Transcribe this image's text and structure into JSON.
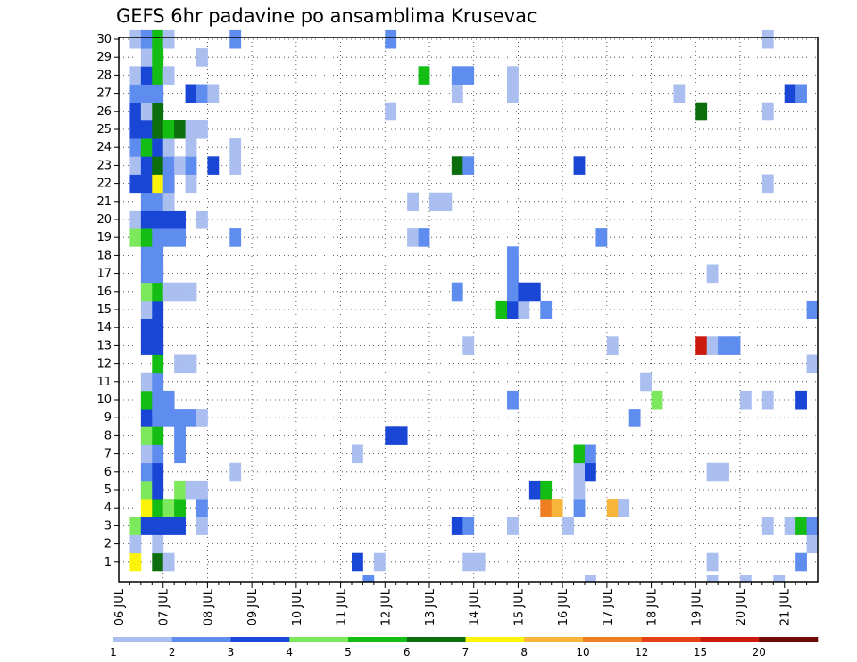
{
  "title": "GEFS 6hr padavine po ansamblima Krusevac",
  "chart_data": {
    "type": "heatmap",
    "title": "GEFS 6hr padavine po ansamblima Krusevac",
    "x_tick_labels": [
      "06 JUL",
      "07 JUL",
      "08 JUL",
      "09 JUL",
      "10 JUL",
      "11 JUL",
      "12 JUL",
      "13 JUL",
      "14 JUL",
      "15 JUL",
      "16 JUL",
      "17 JUL",
      "18 JUL",
      "19 JUL",
      "20 JUL",
      "21 JUL"
    ],
    "y_tick_labels": [
      "1",
      "2",
      "3",
      "4",
      "5",
      "6",
      "7",
      "8",
      "9",
      "10",
      "11",
      "12",
      "13",
      "14",
      "15",
      "16",
      "17",
      "18",
      "19",
      "20",
      "21",
      "22",
      "23",
      "24",
      "25",
      "26",
      "27",
      "28",
      "29",
      "30"
    ],
    "x_unit": "6-hour steps from 06 JUL 00Z",
    "y_unit": "ensemble member",
    "grid": true,
    "colorbar": {
      "placement": "bottom",
      "tick_labels": [
        "1",
        "2",
        "3",
        "4",
        "5",
        "6",
        "7",
        "8",
        "10",
        "12",
        "15",
        "20"
      ],
      "colors": [
        "#aabff0",
        "#5f8cef",
        "#1a46d6",
        "#7ce85c",
        "#13bd13",
        "#0c6e0c",
        "#fbf40a",
        "#f7b63a",
        "#ef7f22",
        "#e44116",
        "#cb1a0d",
        "#700a08"
      ]
    },
    "cells": [
      [
        1,
        1,
        7
      ],
      [
        1,
        2,
        1
      ],
      [
        1,
        3,
        4
      ],
      [
        1,
        19,
        4
      ],
      [
        1,
        20,
        1
      ],
      [
        1,
        22,
        3
      ],
      [
        1,
        23,
        1
      ],
      [
        1,
        24,
        2
      ],
      [
        1,
        25,
        3
      ],
      [
        1,
        26,
        3
      ],
      [
        1,
        27,
        2
      ],
      [
        1,
        28,
        1
      ],
      [
        1,
        30,
        1
      ],
      [
        2,
        3,
        3
      ],
      [
        2,
        4,
        7
      ],
      [
        2,
        5,
        4
      ],
      [
        2,
        6,
        2
      ],
      [
        2,
        7,
        1
      ],
      [
        2,
        8,
        4
      ],
      [
        2,
        9,
        3
      ],
      [
        2,
        10,
        5
      ],
      [
        2,
        11,
        1
      ],
      [
        2,
        13,
        3
      ],
      [
        2,
        14,
        3
      ],
      [
        2,
        15,
        1
      ],
      [
        2,
        16,
        4
      ],
      [
        2,
        17,
        2
      ],
      [
        2,
        18,
        2
      ],
      [
        2,
        19,
        5
      ],
      [
        2,
        20,
        3
      ],
      [
        2,
        21,
        2
      ],
      [
        2,
        22,
        3
      ],
      [
        2,
        23,
        3
      ],
      [
        2,
        24,
        5
      ],
      [
        2,
        25,
        3
      ],
      [
        2,
        26,
        1
      ],
      [
        2,
        27,
        2
      ],
      [
        2,
        28,
        3
      ],
      [
        2,
        29,
        1
      ],
      [
        2,
        30,
        2
      ],
      [
        3,
        1,
        6
      ],
      [
        3,
        2,
        1
      ],
      [
        3,
        3,
        3
      ],
      [
        3,
        4,
        5
      ],
      [
        3,
        5,
        3
      ],
      [
        3,
        6,
        3
      ],
      [
        3,
        7,
        2
      ],
      [
        3,
        8,
        5
      ],
      [
        3,
        9,
        2
      ],
      [
        3,
        10,
        2
      ],
      [
        3,
        11,
        2
      ],
      [
        3,
        12,
        5
      ],
      [
        3,
        13,
        3
      ],
      [
        3,
        14,
        3
      ],
      [
        3,
        15,
        3
      ],
      [
        3,
        16,
        5
      ],
      [
        3,
        17,
        2
      ],
      [
        3,
        18,
        2
      ],
      [
        3,
        19,
        2
      ],
      [
        3,
        20,
        3
      ],
      [
        3,
        21,
        2
      ],
      [
        3,
        22,
        7
      ],
      [
        3,
        23,
        6
      ],
      [
        3,
        24,
        3
      ],
      [
        3,
        25,
        6
      ],
      [
        3,
        26,
        6
      ],
      [
        3,
        27,
        2
      ],
      [
        3,
        28,
        5
      ],
      [
        3,
        29,
        5
      ],
      [
        3,
        30,
        5
      ],
      [
        4,
        1,
        1
      ],
      [
        4,
        3,
        3
      ],
      [
        4,
        4,
        4
      ],
      [
        4,
        9,
        2
      ],
      [
        4,
        10,
        2
      ],
      [
        4,
        16,
        1
      ],
      [
        4,
        19,
        2
      ],
      [
        4,
        20,
        3
      ],
      [
        4,
        21,
        1
      ],
      [
        4,
        22,
        2
      ],
      [
        4,
        23,
        2
      ],
      [
        4,
        24,
        1
      ],
      [
        4,
        25,
        5
      ],
      [
        4,
        28,
        1
      ],
      [
        4,
        30,
        1
      ],
      [
        5,
        3,
        3
      ],
      [
        5,
        4,
        5
      ],
      [
        5,
        5,
        4
      ],
      [
        5,
        7,
        2
      ],
      [
        5,
        8,
        2
      ],
      [
        5,
        9,
        2
      ],
      [
        5,
        12,
        1
      ],
      [
        5,
        16,
        1
      ],
      [
        5,
        19,
        2
      ],
      [
        5,
        20,
        3
      ],
      [
        5,
        23,
        1
      ],
      [
        5,
        25,
        6
      ],
      [
        6,
        5,
        1
      ],
      [
        6,
        9,
        2
      ],
      [
        6,
        12,
        1
      ],
      [
        6,
        16,
        1
      ],
      [
        6,
        22,
        1
      ],
      [
        6,
        23,
        2
      ],
      [
        6,
        24,
        1
      ],
      [
        6,
        25,
        1
      ],
      [
        6,
        27,
        3
      ],
      [
        7,
        3,
        1
      ],
      [
        7,
        4,
        2
      ],
      [
        7,
        5,
        1
      ],
      [
        7,
        9,
        1
      ],
      [
        7,
        20,
        1
      ],
      [
        7,
        25,
        1
      ],
      [
        7,
        27,
        2
      ],
      [
        7,
        29,
        1
      ],
      [
        8,
        27,
        1
      ],
      [
        8,
        23,
        3
      ],
      [
        10,
        6,
        1
      ],
      [
        10,
        19,
        2
      ],
      [
        10,
        23,
        1
      ],
      [
        10,
        24,
        1
      ],
      [
        10,
        30,
        2
      ],
      [
        21,
        1,
        3
      ],
      [
        21,
        7,
        1
      ],
      [
        22,
        0,
        2
      ],
      [
        23,
        1,
        1
      ],
      [
        24,
        8,
        3
      ],
      [
        24,
        26,
        1
      ],
      [
        24,
        30,
        2
      ],
      [
        25,
        8,
        3
      ],
      [
        26,
        19,
        1
      ],
      [
        26,
        21,
        1
      ],
      [
        27,
        19,
        2
      ],
      [
        27,
        28,
        5
      ],
      [
        28,
        21,
        1
      ],
      [
        29,
        21,
        1
      ],
      [
        30,
        3,
        3
      ],
      [
        30,
        16,
        2
      ],
      [
        30,
        23,
        6
      ],
      [
        30,
        27,
        1
      ],
      [
        30,
        28,
        2
      ],
      [
        31,
        1,
        1
      ],
      [
        31,
        3,
        2
      ],
      [
        31,
        13,
        1
      ],
      [
        31,
        23,
        2
      ],
      [
        31,
        28,
        2
      ],
      [
        32,
        1,
        1
      ],
      [
        34,
        15,
        5
      ],
      [
        35,
        3,
        1
      ],
      [
        35,
        10,
        2
      ],
      [
        35,
        15,
        3
      ],
      [
        35,
        16,
        2
      ],
      [
        35,
        17,
        2
      ],
      [
        35,
        18,
        2
      ],
      [
        35,
        27,
        1
      ],
      [
        35,
        28,
        1
      ],
      [
        36,
        15,
        1
      ],
      [
        36,
        16,
        3
      ],
      [
        37,
        5,
        3
      ],
      [
        37,
        16,
        3
      ],
      [
        38,
        4,
        9
      ],
      [
        38,
        5,
        5
      ],
      [
        38,
        15,
        2
      ],
      [
        39,
        4,
        8
      ],
      [
        40,
        3,
        1
      ],
      [
        41,
        4,
        2
      ],
      [
        41,
        5,
        1
      ],
      [
        41,
        6,
        1
      ],
      [
        41,
        7,
        5
      ],
      [
        41,
        23,
        3
      ],
      [
        42,
        6,
        3
      ],
      [
        42,
        7,
        2
      ],
      [
        42,
        0,
        1
      ],
      [
        43,
        19,
        2
      ],
      [
        44,
        4,
        8
      ],
      [
        44,
        13,
        1
      ],
      [
        45,
        4,
        1
      ],
      [
        46,
        9,
        2
      ],
      [
        47,
        11,
        1
      ],
      [
        48,
        10,
        4
      ],
      [
        50,
        27,
        1
      ],
      [
        52,
        13,
        11
      ],
      [
        52,
        26,
        6
      ],
      [
        53,
        1,
        1
      ],
      [
        53,
        6,
        1
      ],
      [
        53,
        13,
        1
      ],
      [
        53,
        17,
        1
      ],
      [
        53,
        0,
        1
      ],
      [
        54,
        6,
        1
      ],
      [
        54,
        13,
        2
      ],
      [
        55,
        13,
        2
      ],
      [
        56,
        10,
        1
      ],
      [
        56,
        0,
        1
      ],
      [
        58,
        3,
        1
      ],
      [
        58,
        10,
        1
      ],
      [
        58,
        22,
        1
      ],
      [
        58,
        26,
        1
      ],
      [
        58,
        30,
        1
      ],
      [
        59,
        0,
        1
      ],
      [
        60,
        3,
        1
      ],
      [
        60,
        27,
        3
      ],
      [
        61,
        1,
        2
      ],
      [
        61,
        3,
        5
      ],
      [
        61,
        10,
        3
      ],
      [
        61,
        27,
        2
      ],
      [
        62,
        2,
        1
      ],
      [
        62,
        3,
        2
      ],
      [
        62,
        12,
        1
      ],
      [
        62,
        15,
        2
      ]
    ]
  }
}
